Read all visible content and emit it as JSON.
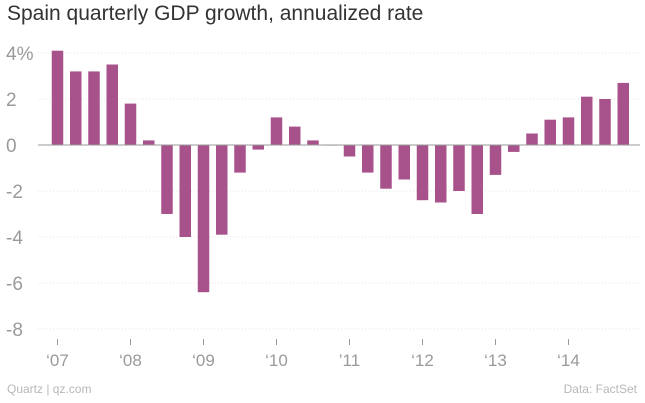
{
  "chart_data": {
    "type": "bar",
    "title": "Spain quarterly GDP growth, annualized rate",
    "xlabel": "",
    "ylabel": "",
    "ylim": [
      -8,
      4
    ],
    "y_ticks": [
      4,
      2,
      0,
      -2,
      -4,
      -6,
      -8
    ],
    "y_tick_labels": [
      "4%",
      "2",
      "0",
      "-2",
      "-4",
      "-6",
      "-8"
    ],
    "x_tick_labels": [
      "‘07",
      "‘08",
      "‘09",
      "‘10",
      "’11",
      "‘12",
      "‘13",
      "‘14"
    ],
    "bar_color": "#a8528c",
    "series": [
      {
        "name": "GDP growth",
        "quarters": [
          "2007 Q1",
          "2007 Q2",
          "2007 Q3",
          "2007 Q4",
          "2008 Q1",
          "2008 Q2",
          "2008 Q3",
          "2008 Q4",
          "2009 Q1",
          "2009 Q2",
          "2009 Q3",
          "2009 Q4",
          "2010 Q1",
          "2010 Q2",
          "2010 Q3",
          "2010 Q4",
          "2011 Q1",
          "2011 Q2",
          "2011 Q3",
          "2011 Q4",
          "2012 Q1",
          "2012 Q2",
          "2012 Q3",
          "2012 Q4",
          "2013 Q1",
          "2013 Q2",
          "2013 Q3",
          "2013 Q4",
          "2014 Q1",
          "2014 Q2",
          "2014 Q3",
          "2014 Q4"
        ],
        "values": [
          4.1,
          3.2,
          3.2,
          3.5,
          1.8,
          0.2,
          -3.0,
          -4.0,
          -6.4,
          -3.9,
          -1.2,
          -0.2,
          1.2,
          0.8,
          0.2,
          0.0,
          -0.5,
          -1.2,
          -1.9,
          -1.5,
          -2.4,
          -2.5,
          -2.0,
          -3.0,
          -1.3,
          -0.3,
          0.5,
          1.1,
          1.2,
          2.1,
          2.0,
          2.7
        ]
      }
    ]
  },
  "footer": {
    "source_left": "Quartz | qz.com",
    "source_right": "Data: FactSet"
  }
}
